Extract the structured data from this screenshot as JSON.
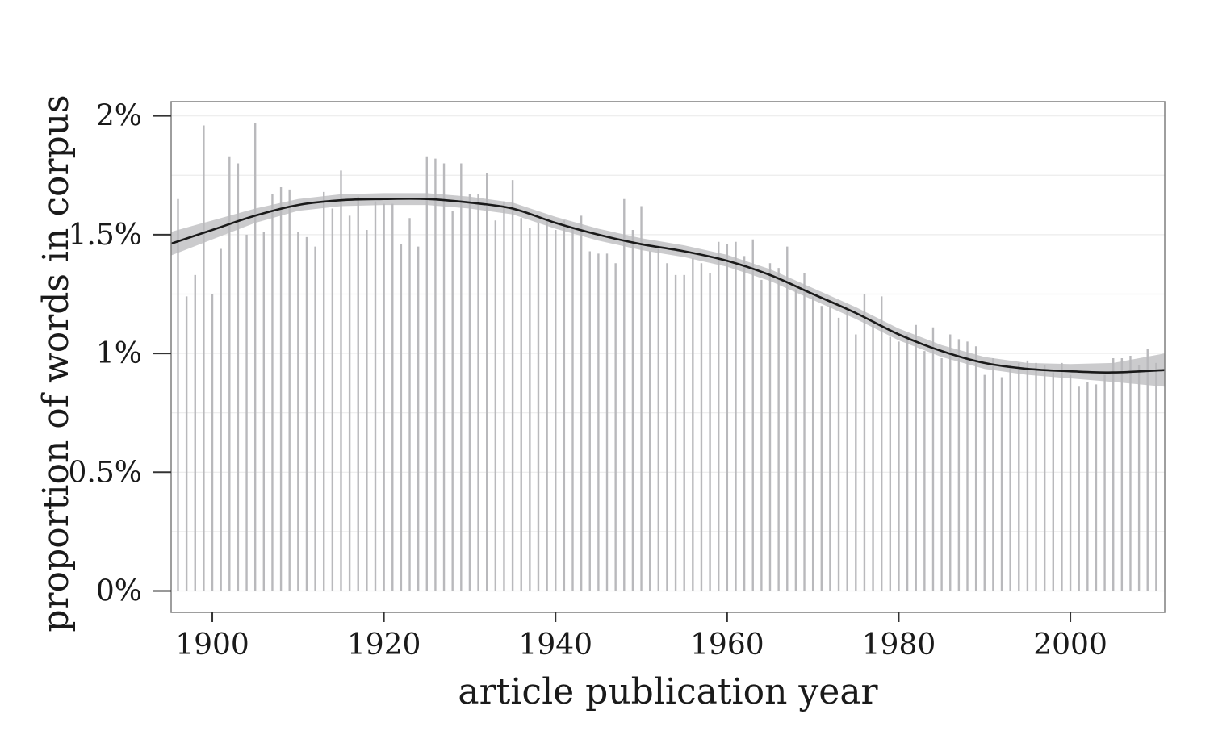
{
  "chart_data": {
    "type": "bar",
    "title": "",
    "xlabel": "article publication year",
    "ylabel": "proportion of words in corpus",
    "xlim": [
      1895.2,
      2011
    ],
    "ylim": [
      -0.09,
      2.06
    ],
    "x_ticks": [
      1900,
      1920,
      1940,
      1960,
      1980,
      2000
    ],
    "x_tick_labels": [
      "1900",
      "1920",
      "1940",
      "1960",
      "1980",
      "2000"
    ],
    "y_ticks": [
      0,
      0.5,
      1,
      1.5,
      2
    ],
    "y_tick_labels": [
      "0%",
      "0.5%",
      "1%",
      "1.5%",
      "2%"
    ],
    "grid": true,
    "x": [
      1896,
      1897,
      1898,
      1899,
      1900,
      1901,
      1902,
      1903,
      1904,
      1905,
      1906,
      1907,
      1908,
      1909,
      1910,
      1911,
      1912,
      1913,
      1914,
      1915,
      1916,
      1917,
      1918,
      1919,
      1920,
      1921,
      1922,
      1923,
      1924,
      1925,
      1926,
      1927,
      1928,
      1929,
      1930,
      1931,
      1932,
      1933,
      1934,
      1935,
      1936,
      1937,
      1938,
      1939,
      1940,
      1941,
      1942,
      1943,
      1944,
      1945,
      1946,
      1947,
      1948,
      1949,
      1950,
      1951,
      1952,
      1953,
      1954,
      1955,
      1956,
      1957,
      1958,
      1959,
      1960,
      1961,
      1962,
      1963,
      1964,
      1965,
      1966,
      1967,
      1968,
      1969,
      1970,
      1971,
      1972,
      1973,
      1974,
      1975,
      1976,
      1977,
      1978,
      1979,
      1980,
      1981,
      1982,
      1983,
      1984,
      1985,
      1986,
      1987,
      1988,
      1989,
      1990,
      1991,
      1992,
      1993,
      1994,
      1995,
      1996,
      1997,
      1998,
      1999,
      2000,
      2001,
      2002,
      2003,
      2004,
      2005,
      2006,
      2007,
      2008,
      2009,
      2010
    ],
    "values": [
      1.65,
      1.24,
      1.33,
      1.96,
      1.25,
      1.44,
      1.83,
      1.8,
      1.5,
      1.97,
      1.51,
      1.67,
      1.7,
      1.69,
      1.51,
      1.49,
      1.45,
      1.68,
      1.61,
      1.77,
      1.58,
      1.66,
      1.52,
      1.64,
      1.63,
      1.63,
      1.46,
      1.57,
      1.45,
      1.83,
      1.82,
      1.8,
      1.6,
      1.8,
      1.67,
      1.67,
      1.76,
      1.56,
      1.64,
      1.73,
      1.57,
      1.53,
      1.55,
      1.56,
      1.52,
      1.56,
      1.53,
      1.58,
      1.43,
      1.42,
      1.42,
      1.38,
      1.65,
      1.52,
      1.62,
      1.43,
      1.44,
      1.38,
      1.33,
      1.33,
      1.4,
      1.38,
      1.34,
      1.47,
      1.46,
      1.47,
      1.41,
      1.48,
      1.31,
      1.38,
      1.36,
      1.45,
      1.27,
      1.34,
      1.24,
      1.2,
      1.2,
      1.15,
      1.19,
      1.08,
      1.25,
      1.12,
      1.24,
      1.07,
      1.05,
      1.08,
      1.12,
      1.01,
      1.11,
      0.98,
      1.08,
      1.06,
      1.05,
      1.03,
      0.91,
      0.98,
      0.9,
      0.95,
      0.96,
      0.97,
      0.96,
      0.95,
      0.92,
      0.96,
      0.91,
      0.86,
      0.88,
      0.87,
      0.91,
      0.98,
      0.98,
      0.99,
      0.95,
      1.02,
      0.96
    ],
    "smooth": {
      "name": "",
      "x": [
        1895,
        1900,
        1905,
        1910,
        1915,
        1920,
        1925,
        1930,
        1935,
        1940,
        1945,
        1950,
        1955,
        1960,
        1965,
        1970,
        1975,
        1980,
        1985,
        1990,
        1995,
        2000,
        2005,
        2011
      ],
      "y": [
        1.46,
        1.52,
        1.58,
        1.625,
        1.645,
        1.65,
        1.65,
        1.635,
        1.61,
        1.55,
        1.5,
        1.46,
        1.43,
        1.39,
        1.33,
        1.25,
        1.17,
        1.08,
        1.01,
        0.96,
        0.935,
        0.925,
        0.92,
        0.93
      ],
      "ci_halfwidth": [
        0.05,
        0.04,
        0.03,
        0.025,
        0.025,
        0.025,
        0.025,
        0.025,
        0.025,
        0.025,
        0.025,
        0.025,
        0.025,
        0.025,
        0.025,
        0.025,
        0.025,
        0.025,
        0.025,
        0.025,
        0.025,
        0.03,
        0.04,
        0.07
      ]
    },
    "colors": {
      "bars": "#b9b9bc",
      "line": "#1a1a1a",
      "band": "#c8c8ca",
      "grid": "#ebebeb",
      "frame": "#7f7f7f"
    }
  }
}
